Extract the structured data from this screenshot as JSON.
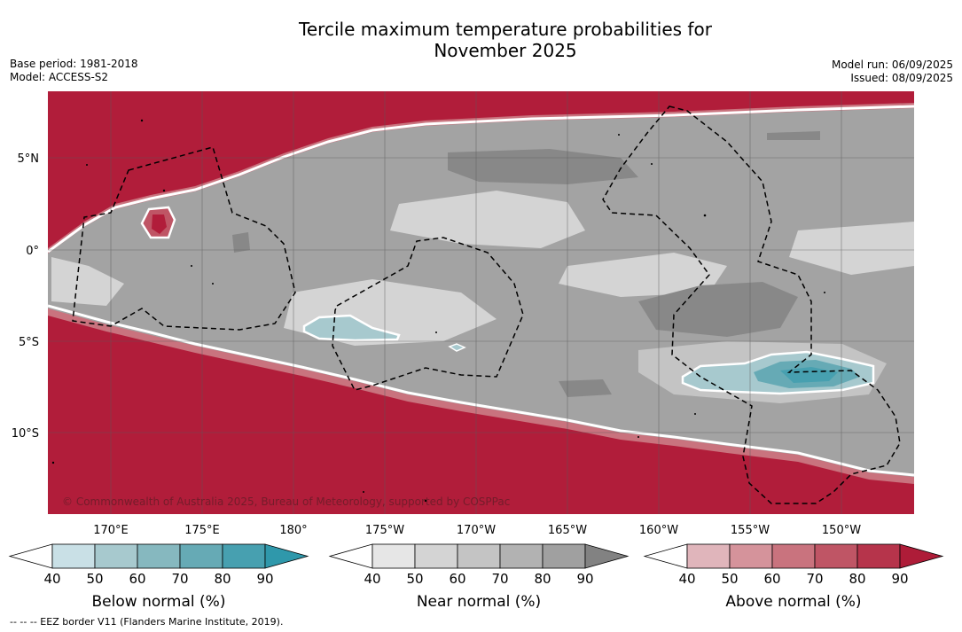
{
  "title_line1": "Tercile maximum temperature probabilities for",
  "title_line2": "November 2025",
  "base_period": "Base period: 1981-2018",
  "model": "Model: ACCESS-S2",
  "model_run": "Model run: 06/09/2025",
  "issued": "Issued: 08/09/2025",
  "copyright": "© Commonwealth of Australia 2025, Bureau of Meteorology, supported by COSPPac",
  "lat_labels": [
    "5°N",
    "0°",
    "5°S",
    "10°S"
  ],
  "lon_labels": [
    "170°E",
    "175°E",
    "180°",
    "175°W",
    "170°W",
    "165°W",
    "160°W",
    "155°W",
    "150°W"
  ],
  "colorbars": [
    {
      "label": "Below normal (%)",
      "ticks": [
        "40",
        "50",
        "60",
        "70",
        "80",
        "90"
      ],
      "colors": [
        "#ffffff",
        "#c9e0e6",
        "#a7c9ce",
        "#86b8bf",
        "#66aab5",
        "#47a0b0",
        "#2f98ab"
      ]
    },
    {
      "label": "Near normal (%)",
      "ticks": [
        "40",
        "50",
        "60",
        "70",
        "80",
        "90"
      ],
      "colors": [
        "#ffffff",
        "#e6e6e6",
        "#d4d4d4",
        "#c4c4c4",
        "#b2b2b2",
        "#a0a0a0",
        "#828282"
      ]
    },
    {
      "label": "Above normal (%)",
      "ticks": [
        "40",
        "50",
        "60",
        "70",
        "80",
        "90"
      ],
      "colors": [
        "#ffffff",
        "#e0b5bb",
        "#d5939b",
        "#c9737e",
        "#bf5565",
        "#b6344b",
        "#ae1c38"
      ]
    }
  ],
  "eez_note": "--  --  -- EEZ border V11 (Flanders Marine Institute, 2019)."
}
